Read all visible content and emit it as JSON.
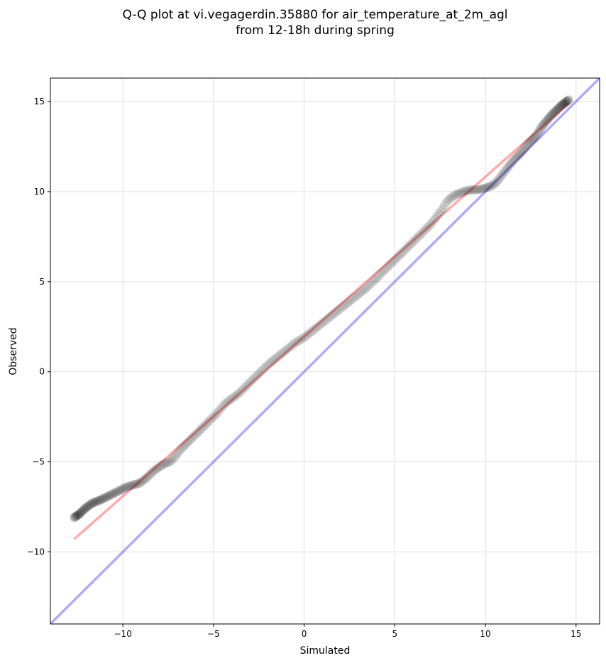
{
  "chart_data": {
    "type": "scatter",
    "title_lines": [
      "Q-Q plot at vi.vegagerdin.35880 for air_temperature_at_2m_agl",
      "from 12-18h during spring"
    ],
    "xlabel": "Simulated",
    "ylabel": "Observed",
    "xlim": [
      -14.0,
      16.3
    ],
    "ylim": [
      -14.0,
      16.3
    ],
    "xticks": [
      -10,
      -5,
      0,
      5,
      10,
      15
    ],
    "yticks": [
      -10,
      -5,
      0,
      5,
      10,
      15
    ],
    "xtick_labels": [
      "−10",
      "−5",
      "0",
      "5",
      "10",
      "15"
    ],
    "ytick_labels": [
      "−10",
      "−5",
      "0",
      "5",
      "10",
      "15"
    ],
    "grid": true,
    "colors": {
      "points": "#000000",
      "fit_line": "#ff3a3a",
      "identity_line": "#3a3aee",
      "grid": "#e6e6e6"
    },
    "fit_line": {
      "x": [
        -12.7,
        14.6
      ],
      "y": [
        -9.3,
        14.9
      ]
    },
    "identity_line": {
      "x": [
        -14.0,
        16.3
      ],
      "y": [
        -14.0,
        16.3
      ]
    },
    "quantile_anchors": {
      "x": [
        -12.7,
        -12.4,
        -12.1,
        -11.7,
        -11.2,
        -10.6,
        -10.2,
        -9.8,
        -9.5,
        -9.1,
        -8.7,
        -8.3,
        -8.0,
        -7.7,
        -7.4,
        -7.1,
        -6.8,
        -6.4,
        -6.0,
        -5.6,
        -5.2,
        -4.8,
        -4.4,
        -4.0,
        -3.6,
        -3.2,
        -2.8,
        -2.4,
        -2.0,
        -1.5,
        -1.0,
        -0.5,
        0.0,
        0.5,
        1.0,
        1.5,
        2.0,
        2.5,
        3.0,
        3.5,
        4.0,
        4.5,
        5.0,
        5.5,
        6.0,
        6.5,
        7.0,
        7.3,
        7.6,
        7.9,
        8.3,
        8.8,
        9.2,
        9.6,
        10.0,
        10.3,
        10.6,
        10.9,
        11.2,
        11.6,
        12.0,
        12.4,
        12.8,
        13.1,
        13.6,
        14.1,
        14.6
      ],
      "y": [
        -8.1,
        -7.9,
        -7.6,
        -7.3,
        -7.1,
        -6.8,
        -6.6,
        -6.4,
        -6.3,
        -6.2,
        -5.9,
        -5.5,
        -5.3,
        -5.1,
        -5.0,
        -4.7,
        -4.3,
        -3.9,
        -3.5,
        -3.1,
        -2.7,
        -2.3,
        -1.8,
        -1.5,
        -1.2,
        -0.8,
        -0.4,
        0.0,
        0.4,
        0.8,
        1.2,
        1.6,
        1.9,
        2.3,
        2.7,
        3.1,
        3.5,
        3.9,
        4.3,
        4.7,
        5.2,
        5.7,
        6.2,
        6.7,
        7.2,
        7.7,
        8.2,
        8.6,
        9.0,
        9.5,
        9.8,
        10.0,
        10.1,
        10.1,
        10.2,
        10.3,
        10.5,
        10.9,
        11.3,
        11.8,
        12.2,
        12.7,
        13.1,
        13.6,
        14.2,
        14.7,
        15.1
      ]
    },
    "n_points": 320
  }
}
